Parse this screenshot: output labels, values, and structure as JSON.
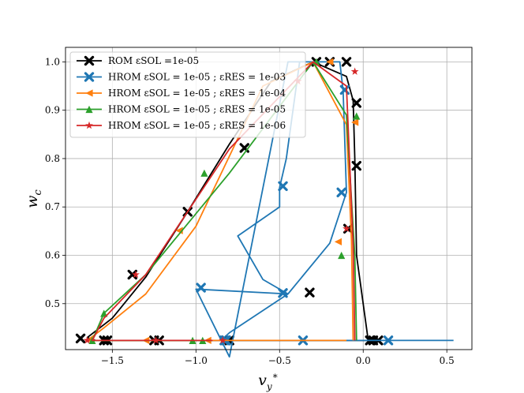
{
  "chart_data": {
    "type": "line",
    "xlabel": "v*y",
    "ylabel": "wc",
    "xlim": [
      -1.78,
      0.65
    ],
    "ylim": [
      0.405,
      1.03
    ],
    "xticks": [
      -1.5,
      -1.0,
      -0.5,
      0.0,
      0.5
    ],
    "xtick_labels": [
      "−1.5",
      "−1.0",
      "−0.5",
      "0.0",
      "0.5"
    ],
    "yticks": [
      0.4,
      0.5,
      0.6,
      0.7,
      0.8,
      0.9,
      1.0
    ],
    "ytick_labels": [
      "0.4",
      "0.5",
      "0.6",
      "0.7",
      "0.8",
      "0.9",
      "1.0"
    ],
    "grid": true,
    "legend_position": "top-left",
    "series": [
      {
        "name": "ROM εSOL =1e-05",
        "color": "#000000",
        "marker": "X",
        "x": [
          0.03,
          -0.04,
          -0.05,
          -0.06,
          -0.1,
          -0.3,
          -0.55,
          -0.8,
          -1.05,
          -1.3,
          -1.5,
          -1.65,
          -1.6,
          -1.2,
          -0.8,
          -0.4,
          0.0,
          0.1
        ],
        "y": [
          0.424,
          0.6,
          0.8,
          0.92,
          0.97,
          1.0,
          0.96,
          0.83,
          0.69,
          0.555,
          0.47,
          0.43,
          0.424,
          0.424,
          0.424,
          0.424,
          0.424,
          0.424
        ],
        "markers": [
          [
            -1.69,
            0.428
          ],
          [
            -1.55,
            0.424
          ],
          [
            -1.53,
            0.424
          ],
          [
            -1.25,
            0.424
          ],
          [
            -1.22,
            0.424
          ],
          [
            -0.82,
            0.424
          ],
          [
            -0.8,
            0.424
          ],
          [
            0.04,
            0.424
          ],
          [
            0.06,
            0.424
          ],
          [
            0.09,
            0.424
          ],
          [
            -0.09,
            0.655
          ],
          [
            -0.04,
            0.785
          ],
          [
            -0.04,
            0.915
          ],
          [
            -0.1,
            1.0
          ],
          [
            -0.2,
            1.0
          ],
          [
            -0.28,
            1.0
          ],
          [
            -0.32,
            0.523
          ],
          [
            -1.05,
            0.69
          ],
          [
            -0.71,
            0.822
          ],
          [
            -1.38,
            0.56
          ]
        ]
      },
      {
        "name": "HROM εSOL = 1e-05 ; εRES = 1e-03",
        "color": "#1f77b4",
        "marker": "X",
        "x": [
          0.54,
          -0.85,
          -0.8,
          -0.45,
          -0.2,
          -0.1,
          -0.12,
          -0.14,
          -0.18,
          -0.45,
          -0.8,
          -1.0,
          -0.45,
          -0.6,
          -0.75,
          -0.5,
          -0.5,
          -0.46,
          -0.38
        ],
        "y": [
          0.424,
          0.424,
          0.44,
          0.52,
          0.625,
          0.73,
          0.94,
          1.0,
          1.0,
          1.0,
          0.39,
          0.53,
          0.52,
          0.55,
          0.64,
          0.7,
          0.74,
          0.8,
          1.0
        ],
        "markers": [
          [
            0.15,
            0.424
          ],
          [
            -0.36,
            0.424
          ],
          [
            -0.83,
            0.424
          ],
          [
            -0.82,
            0.424
          ],
          [
            -0.97,
            0.533
          ],
          [
            -0.48,
            0.522
          ],
          [
            -0.13,
            0.73
          ],
          [
            -0.11,
            0.942
          ],
          [
            -0.48,
            0.743
          ]
        ]
      },
      {
        "name": "HROM εSOL = 1e-05 ; εRES = 1e-04",
        "color": "#ff7f0e",
        "marker": "<",
        "x": [
          -0.06,
          -0.07,
          -0.1,
          -0.3,
          -0.6,
          -1.0,
          -1.3,
          -1.55,
          -1.65,
          -1.3,
          -0.9,
          -0.5,
          -0.1
        ],
        "y": [
          0.424,
          0.63,
          0.87,
          1.0,
          0.95,
          0.66,
          0.52,
          0.45,
          0.424,
          0.424,
          0.424,
          0.424,
          0.424
        ],
        "markers": [
          [
            -1.63,
            0.424
          ],
          [
            -1.3,
            0.424
          ],
          [
            -0.93,
            0.424
          ],
          [
            -1.1,
            0.651
          ],
          [
            -0.05,
            0.875
          ],
          [
            -0.15,
            0.628
          ],
          [
            -0.2,
            1.0
          ]
        ]
      },
      {
        "name": "HROM εSOL = 1e-05 ; εRES = 1e-05",
        "color": "#2ca02c",
        "marker": "^",
        "x": [
          -0.04,
          -0.05,
          -0.1,
          -0.3,
          -0.8,
          -1.3,
          -1.55,
          -1.62,
          -1.3,
          -0.9
        ],
        "y": [
          0.424,
          0.6,
          0.89,
          1.0,
          0.77,
          0.56,
          0.48,
          0.424,
          0.424,
          0.424
        ],
        "markers": [
          [
            -1.62,
            0.424
          ],
          [
            -1.02,
            0.424
          ],
          [
            -0.96,
            0.424
          ],
          [
            -0.13,
            0.6
          ],
          [
            -0.04,
            0.888
          ],
          [
            -0.28,
            1.0
          ],
          [
            -0.95,
            0.77
          ],
          [
            -1.55,
            0.48
          ]
        ]
      },
      {
        "name": "HROM εSOL = 1e-05 ; εRES = 1e-06",
        "color": "#d62728",
        "marker": "*",
        "x": [
          -0.05,
          -0.06,
          -0.1,
          -0.3,
          -0.8,
          -1.3,
          -1.55,
          -1.62,
          -1.3,
          -0.9
        ],
        "y": [
          0.424,
          0.62,
          0.95,
          1.0,
          0.82,
          0.56,
          0.47,
          0.424,
          0.424,
          0.424
        ],
        "markers": [
          [
            -1.65,
            0.424
          ],
          [
            -1.24,
            0.424
          ],
          [
            -0.84,
            0.424
          ],
          [
            -0.05,
            0.98
          ],
          [
            -0.1,
            0.655
          ],
          [
            -0.39,
            0.96
          ],
          [
            -1.36,
            0.56
          ]
        ]
      }
    ]
  }
}
